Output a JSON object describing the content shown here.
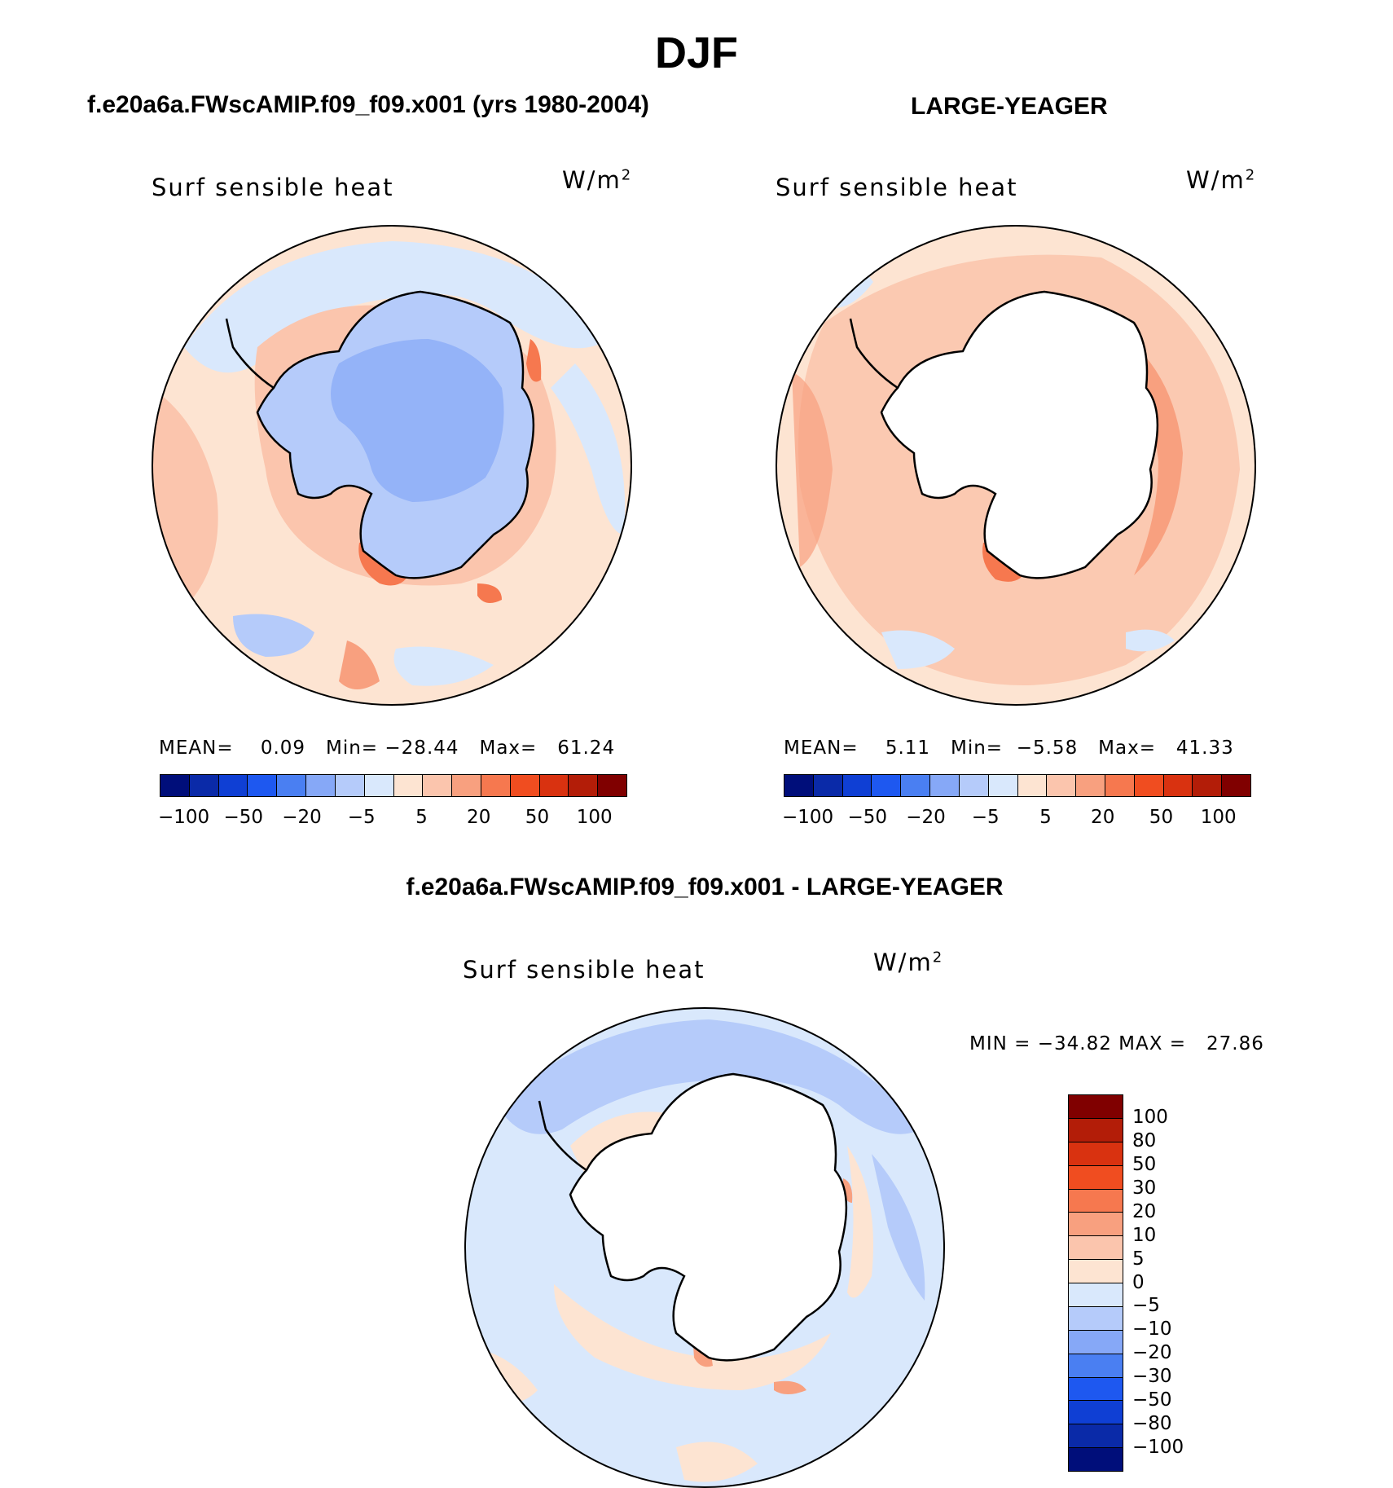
{
  "header": {
    "season": "DJF"
  },
  "panels": [
    {
      "case_title": "f.e20a6a.FWscAMIP.f09_f09.x001 (yrs 1980-2004)",
      "variable": "Surf sensible heat",
      "units": "W/m",
      "units_sup": "2",
      "stats": {
        "mean_label": "MEAN=",
        "mean": "0.09",
        "min_label": "Min=",
        "min": "−28.44",
        "max_label": "Max=",
        "max": "61.24"
      }
    },
    {
      "case_title": "LARGE-YEAGER",
      "variable": "Surf sensible heat",
      "units": "W/m",
      "units_sup": "2",
      "stats": {
        "mean_label": "MEAN=",
        "mean": "5.11",
        "min_label": "Min=",
        "min": "−5.58",
        "max_label": "Max=",
        "max": "41.33"
      }
    },
    {
      "case_title": "f.e20a6a.FWscAMIP.f09_f09.x001 - LARGE-YEAGER",
      "variable": "Surf sensible heat",
      "units": "W/m",
      "units_sup": "2",
      "stats": {
        "text": "MIN = −34.82 MAX =   27.86"
      }
    }
  ],
  "colorbar_top": {
    "colors": [
      "#000e7a",
      "#0a2aa8",
      "#0f3fd4",
      "#1e58f0",
      "#4a7ff2",
      "#86a8f7",
      "#b5cbfa",
      "#d9e8fc",
      "#fde4d2",
      "#fbc5ad",
      "#f8a07f",
      "#f6784f",
      "#f04d20",
      "#d93210",
      "#b31d08",
      "#800000"
    ],
    "ticks": [
      "−100",
      "−50",
      "−20",
      "−5",
      "5",
      "20",
      "50",
      "100"
    ]
  },
  "colorbar_diff": {
    "colors": [
      "#800000",
      "#b31d08",
      "#d93210",
      "#f04d20",
      "#f6784f",
      "#f8a07f",
      "#fbc5ad",
      "#fde4d2",
      "#d9e8fc",
      "#b5cbfa",
      "#86a8f7",
      "#4a7ff2",
      "#1e58f0",
      "#0f3fd4",
      "#0a2aa8",
      "#000e7a"
    ],
    "ticks": [
      "100",
      "80",
      "50",
      "30",
      "20",
      "10",
      "5",
      "0",
      "−5",
      "−10",
      "−20",
      "−30",
      "−50",
      "−80",
      "−100"
    ]
  },
  "map_colors": {
    "neg5": "#d9e8fc",
    "neg10": "#b5cbfa",
    "neg20": "#86a8f7",
    "pos5": "#fde4d2",
    "pos10": "#fbc5ad",
    "pos20": "#f8a07f",
    "pos30": "#f6784f",
    "pos50": "#f04d20"
  }
}
